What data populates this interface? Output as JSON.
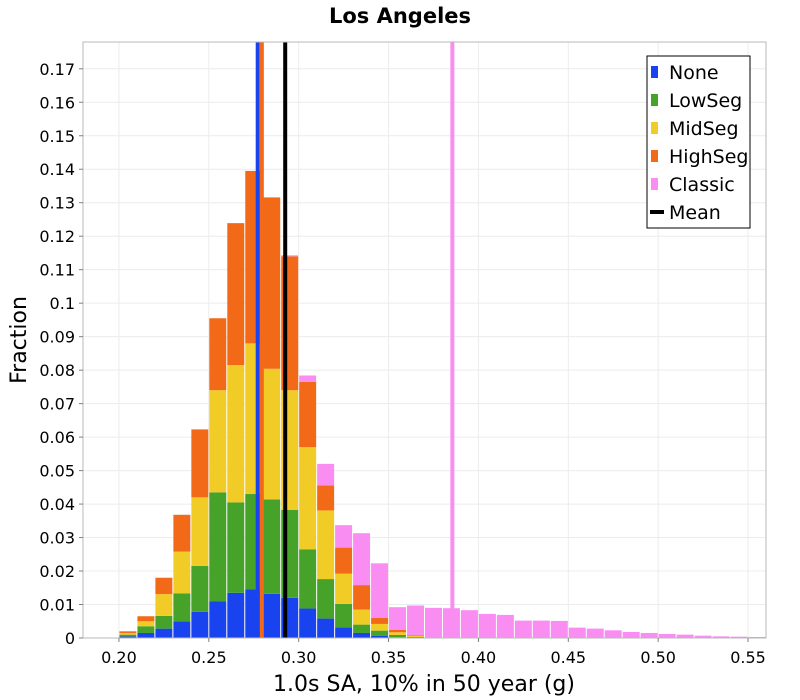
{
  "chart_data": {
    "type": "bar",
    "subtype": "stacked-histogram",
    "title": "Los Angeles",
    "xlabel": "1.0s SA, 10% in 50 year (g)",
    "ylabel": "Fraction",
    "xlim": [
      0.18,
      0.56
    ],
    "ylim": [
      0,
      0.178
    ],
    "grid": true,
    "legend_position": "top-right",
    "bin_width": 0.01,
    "x_ticks": [
      {
        "value": 0.2,
        "label": "0.20"
      },
      {
        "value": 0.25,
        "label": "0.25"
      },
      {
        "value": 0.3,
        "label": "0.30"
      },
      {
        "value": 0.35,
        "label": "0.35"
      },
      {
        "value": 0.4,
        "label": "0.40"
      },
      {
        "value": 0.45,
        "label": "0.45"
      },
      {
        "value": 0.5,
        "label": "0.50"
      },
      {
        "value": 0.55,
        "label": "0.55"
      }
    ],
    "y_ticks": [
      {
        "value": 0,
        "label": "0"
      },
      {
        "value": 0.01,
        "label": "0.01"
      },
      {
        "value": 0.02,
        "label": "0.02"
      },
      {
        "value": 0.03,
        "label": "0.03"
      },
      {
        "value": 0.04,
        "label": "0.04"
      },
      {
        "value": 0.05,
        "label": "0.05"
      },
      {
        "value": 0.06,
        "label": "0.06"
      },
      {
        "value": 0.07,
        "label": "0.07"
      },
      {
        "value": 0.08,
        "label": "0.08"
      },
      {
        "value": 0.09,
        "label": "0.09"
      },
      {
        "value": 0.1,
        "label": "0.1"
      },
      {
        "value": 0.11,
        "label": "0.11"
      },
      {
        "value": 0.12,
        "label": "0.12"
      },
      {
        "value": 0.13,
        "label": "0.13"
      },
      {
        "value": 0.14,
        "label": "0.14"
      },
      {
        "value": 0.15,
        "label": "0.15"
      },
      {
        "value": 0.16,
        "label": "0.16"
      },
      {
        "value": 0.17,
        "label": "0.17"
      }
    ],
    "bin_starts": [
      0.19,
      0.2,
      0.21,
      0.22,
      0.23,
      0.24,
      0.25,
      0.26,
      0.27,
      0.28,
      0.29,
      0.3,
      0.31,
      0.32,
      0.33,
      0.34,
      0.35,
      0.36,
      0.37,
      0.38,
      0.39,
      0.4,
      0.41,
      0.42,
      0.43,
      0.44,
      0.45,
      0.46,
      0.47,
      0.48,
      0.49,
      0.5,
      0.51,
      0.52,
      0.53,
      0.54,
      0.55
    ],
    "series": [
      {
        "name": "None",
        "color": "#1a43f0",
        "values": [
          0,
          0.0005,
          0.0015,
          0.0028,
          0.005,
          0.0078,
          0.011,
          0.0135,
          0.0145,
          0.0132,
          0.012,
          0.0088,
          0.0058,
          0.0032,
          0.0015,
          0.0007,
          0.0002,
          0,
          0,
          0,
          0,
          0,
          0,
          0,
          0,
          0,
          0,
          0,
          0,
          0,
          0,
          0,
          0,
          0,
          0,
          0,
          0
        ]
      },
      {
        "name": "LowSeg",
        "color": "#46a229",
        "values": [
          0,
          0.0005,
          0.002,
          0.0038,
          0.0083,
          0.0137,
          0.0325,
          0.027,
          0.0285,
          0.0282,
          0.0263,
          0.0177,
          0.0118,
          0.007,
          0.0025,
          0.0015,
          0.0007,
          0.0003,
          0,
          0,
          0,
          0,
          0,
          0,
          0,
          0,
          0,
          0,
          0,
          0,
          0,
          0,
          0,
          0,
          0,
          0,
          0
        ]
      },
      {
        "name": "MidSeg",
        "color": "#f2cc26",
        "values": [
          0,
          0.0005,
          0.0015,
          0.0065,
          0.0125,
          0.0205,
          0.0305,
          0.041,
          0.045,
          0.039,
          0.0357,
          0.0305,
          0.0205,
          0.009,
          0.0045,
          0.002,
          0.0008,
          0.0003,
          0,
          0,
          0,
          0,
          0,
          0,
          0,
          0,
          0,
          0,
          0,
          0,
          0,
          0,
          0,
          0,
          0,
          0,
          0
        ]
      },
      {
        "name": "HighSeg",
        "color": "#f26a17",
        "values": [
          0,
          0.0005,
          0.0015,
          0.0049,
          0.011,
          0.0203,
          0.0215,
          0.0424,
          0.0515,
          0.0511,
          0.04,
          0.0195,
          0.0075,
          0.0078,
          0.0073,
          0.0018,
          0.0007,
          0.0002,
          0,
          0,
          0,
          0,
          0,
          0,
          0,
          0,
          0,
          0,
          0,
          0,
          0,
          0,
          0,
          0,
          0,
          0,
          0
        ]
      },
      {
        "name": "Classic",
        "color": "#f98df1",
        "values": [
          0,
          0,
          0,
          0,
          0,
          0,
          0,
          0,
          0,
          0.0002,
          0.0003,
          0.0019,
          0.0064,
          0.0067,
          0.0155,
          0.0163,
          0.0068,
          0.0089,
          0.009,
          0.0089,
          0.0083,
          0.0072,
          0.0069,
          0.0052,
          0.0052,
          0.0051,
          0.0031,
          0.0028,
          0.0023,
          0.0018,
          0.0015,
          0.0012,
          0.001,
          0.0007,
          0.0005,
          0.0004,
          0.0003
        ]
      }
    ],
    "mean_lines": [
      {
        "series": "None",
        "x": 0.2772,
        "color": "#1a43f0"
      },
      {
        "series": "HighSeg",
        "x": 0.2795,
        "color": "#f26a17"
      },
      {
        "series": "Classic",
        "x": 0.3855,
        "color": "#f98df1"
      },
      {
        "series": "Mean",
        "x": 0.2925,
        "color": "#000000"
      }
    ],
    "legend": [
      {
        "label": "None",
        "color": "#1a43f0",
        "kind": "swatch"
      },
      {
        "label": "LowSeg",
        "color": "#46a229",
        "kind": "swatch"
      },
      {
        "label": "MidSeg",
        "color": "#f2cc26",
        "kind": "swatch"
      },
      {
        "label": "HighSeg",
        "color": "#f26a17",
        "kind": "swatch"
      },
      {
        "label": "Classic",
        "color": "#f98df1",
        "kind": "swatch"
      },
      {
        "label": "Mean",
        "color": "#000000",
        "kind": "line"
      }
    ]
  }
}
